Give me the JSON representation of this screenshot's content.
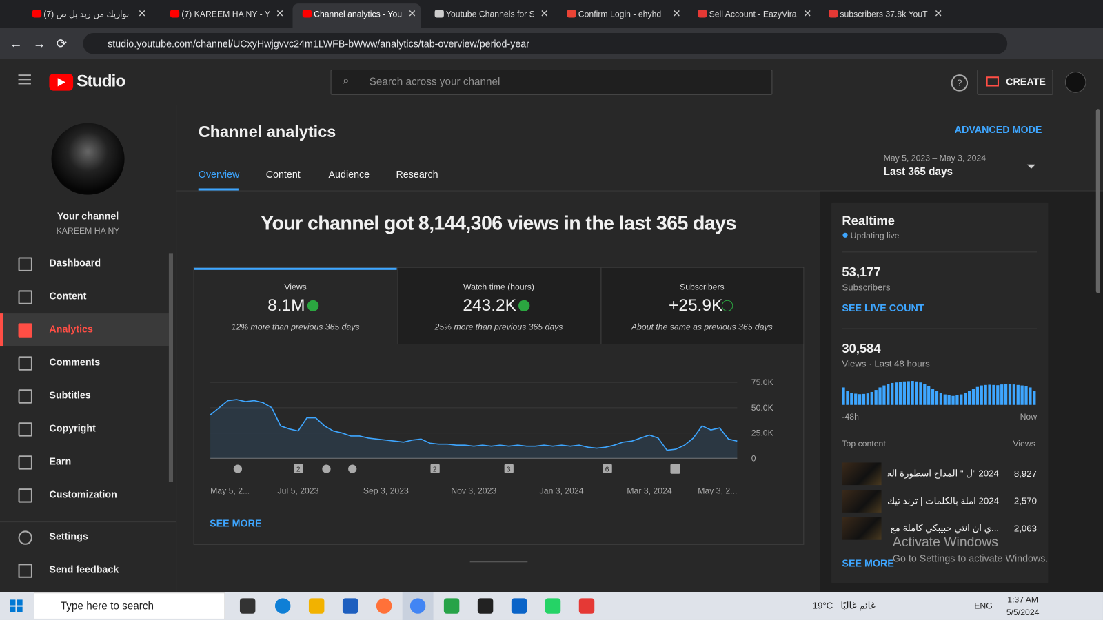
{
  "browser": {
    "tabs": [
      "(7) بوازيك من ريد بل ص",
      "(7) KAREEM HA NY - Yo",
      "Channel analytics - You",
      "Youtube Channels for S",
      "Confirm Login - ehyhd",
      "Sell Account - EazyVira",
      "subscribers 37.8k YouT"
    ],
    "url": "studio.youtube.com/channel/UCxyHwjgvvc24m1LWFB-bWww/analytics/tab-overview/period-year"
  },
  "header": {
    "logo": "Studio",
    "search": "Search across your channel",
    "create": "CREATE"
  },
  "sidebar": {
    "channel_title": "Your channel",
    "channel_name": "KAREEM HA NY",
    "items": [
      "Dashboard",
      "Content",
      "Analytics",
      "Comments",
      "Subtitles",
      "Copyright",
      "Earn",
      "Customization"
    ],
    "footer_items": [
      "Settings",
      "Send feedback"
    ]
  },
  "page": {
    "title": "Channel analytics",
    "advanced": "ADVANCED MODE",
    "tabs": [
      "Overview",
      "Content",
      "Audience",
      "Research"
    ],
    "date_range": "May 5, 2023 – May 3, 2024",
    "period": "Last 365 days",
    "headline": "Your channel got 8,144,306 views in the last 365 days",
    "see_more": "SEE MORE"
  },
  "metrics": [
    {
      "label": "Views",
      "value": "8.1M",
      "note": "12% more than previous 365 days"
    },
    {
      "label": "Watch time (hours)",
      "value": "243.2K",
      "note": "25% more than previous 365 days"
    },
    {
      "label": "Subscribers",
      "value": "+25.9K",
      "note": "About the same as previous 365 days"
    }
  ],
  "chart_data": {
    "type": "line",
    "color": "#3ea6ff",
    "categories": [
      "May 5, 2...",
      null,
      null,
      null,
      null,
      null,
      null,
      null,
      null,
      null,
      "Jul 5, 2023",
      null,
      null,
      null,
      null,
      null,
      null,
      null,
      null,
      null,
      "Sep 3, 2023",
      null,
      null,
      null,
      null,
      null,
      null,
      null,
      null,
      null,
      "Nov 3, 2023",
      null,
      null,
      null,
      null,
      null,
      null,
      null,
      null,
      null,
      "Jan 3, 2024",
      null,
      null,
      null,
      null,
      null,
      null,
      null,
      null,
      null,
      "Mar 3, 2024",
      null,
      null,
      null,
      null,
      null,
      null,
      null,
      null,
      null,
      "May 3, 2..."
    ],
    "values": [
      43000,
      50000,
      57000,
      58000,
      56000,
      57000,
      55000,
      50000,
      32000,
      29000,
      27000,
      40000,
      40000,
      32000,
      27000,
      25000,
      22000,
      22000,
      20000,
      19000,
      18000,
      17000,
      16000,
      18000,
      19000,
      15000,
      14000,
      14000,
      13000,
      13000,
      12000,
      13000,
      12000,
      13000,
      12000,
      13000,
      12000,
      12000,
      13000,
      12000,
      13000,
      12000,
      13000,
      11000,
      10000,
      11000,
      13000,
      16000,
      17000,
      20000,
      23000,
      20000,
      8000,
      9000,
      13000,
      20000,
      32000,
      28000,
      30000,
      19000,
      17000
    ],
    "ylim": [
      0,
      75000
    ],
    "yticks": [
      0,
      {
        "value": 25000,
        "label": "25.0K"
      },
      {
        "value": 50000,
        "label": "50.0K"
      },
      {
        "value": 75000,
        "label": "75.0K"
      }
    ],
    "grid": true,
    "annotation_labels": [
      "2",
      "2",
      "3",
      "6"
    ]
  },
  "realtime": {
    "title": "Realtime",
    "status": "Updating live",
    "subscribers": "53,177",
    "subscribers_label": "Subscribers",
    "live_link": "SEE LIVE COUNT",
    "views": "30,584",
    "views_label": "Views · Last 48 hours",
    "bars": [
      700,
      560,
      480,
      450,
      430,
      440,
      460,
      520,
      600,
      700,
      780,
      850,
      880,
      900,
      920,
      940,
      950,
      960,
      940,
      900,
      840,
      760,
      650,
      560,
      480,
      420,
      380,
      360,
      380,
      420,
      480,
      560,
      650,
      720,
      780,
      800,
      810,
      800,
      790,
      820,
      840,
      830,
      820,
      800,
      780,
      760,
      700,
      560
    ],
    "start_label": "-48h",
    "end_label": "Now",
    "top_content": "Top content",
    "views_header": "Views",
    "rows": [
      {
        "title": "2024 \"ل \" المداح اسطورة العوده...",
        "views": "8,927"
      },
      {
        "title": "2024 املة بالكلمات | ترند تيك توك...",
        "views": "2,570"
      },
      {
        "title": "...ي ان انتي حبيبكي كاملة مع الكلمات",
        "views": "2,063"
      }
    ],
    "see_more": "SEE MORE"
  },
  "watermark": {
    "title": "Activate Windows",
    "text": "Go to Settings to activate Windows."
  },
  "taskbar": {
    "search": "Type here to search",
    "temp": "19°C",
    "weather": "غائم غالبًا",
    "lang": "ENG",
    "time": "1:37 AM",
    "date": "5/5/2024"
  }
}
